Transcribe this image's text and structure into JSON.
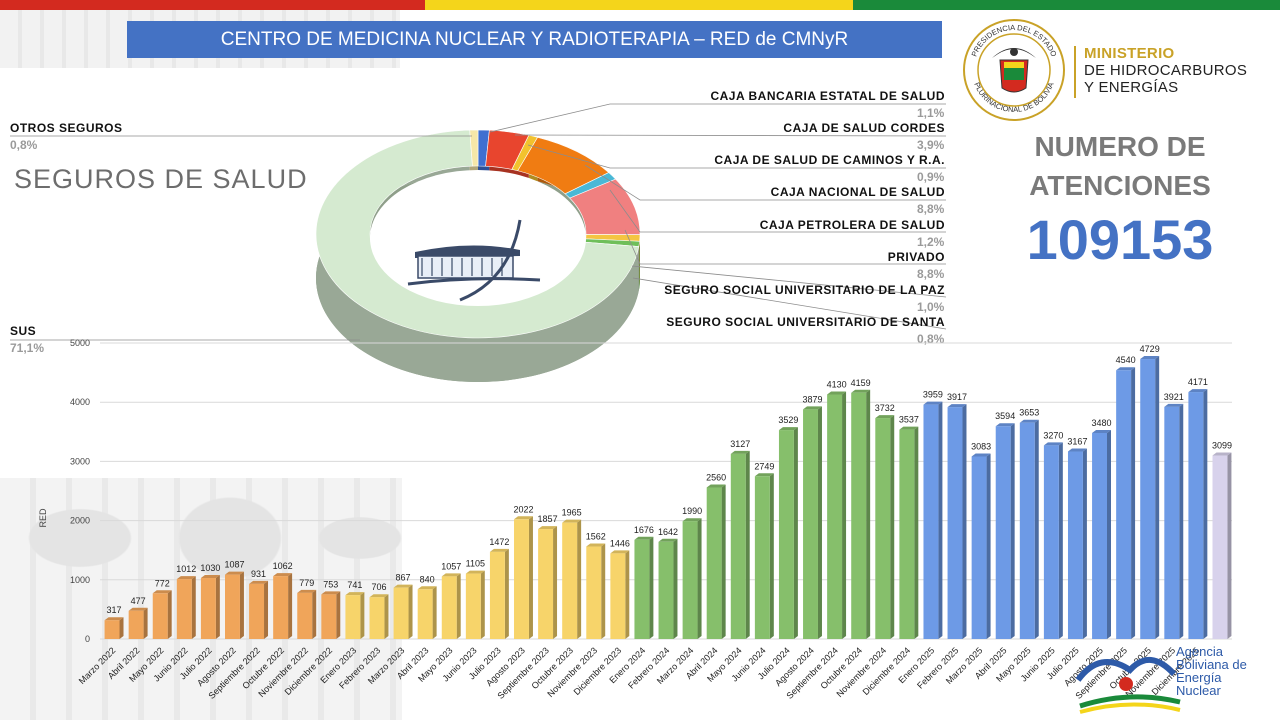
{
  "header": {
    "title": "CENTRO DE MEDICINA NUCLEAR Y RADIOTERAPIA – RED de CMNyR",
    "flag_colors": [
      "#d32a1f",
      "#f4d51b",
      "#1a8a3a"
    ]
  },
  "ministry": {
    "seal_top_text": "PRESIDENCIA DEL ESTADO",
    "seal_bottom_text": "PLURINACIONAL DE BOLIVIA",
    "line1": "MINISTERIO",
    "line2": "DE HIDROCARBUROS",
    "line3": "Y ENERGÍAS"
  },
  "summary": {
    "label_line1": "NUMERO DE",
    "label_line2": "ATENCIONES",
    "value": "109153"
  },
  "agency": {
    "line1": "Agencia",
    "line2": "Boliviana de",
    "line3": "Energía",
    "line4": "Nuclear"
  },
  "chart_data": [
    {
      "type": "pie",
      "style": "donut-3d",
      "title": "SEGUROS DE SALUD",
      "slices": [
        {
          "label": "CAJA BANCARIA ESTATAL DE SALUD",
          "pct_text": "1,1%",
          "value": 1.1,
          "color": "#3f6fd0"
        },
        {
          "label": "CAJA DE SALUD CORDES",
          "pct_text": "3,9%",
          "value": 3.9,
          "color": "#e8452e"
        },
        {
          "label": "CAJA DE SALUD DE CAMINOS Y R.A.",
          "pct_text": "0,9%",
          "value": 0.9,
          "color": "#f2c22e"
        },
        {
          "label": "CAJA NACIONAL DE SALUD",
          "pct_text": "8,8%",
          "value": 8.8,
          "color": "#f07c12"
        },
        {
          "label": "CAJA PETROLERA DE SALUD",
          "pct_text": "1,2%",
          "value": 1.2,
          "color": "#4ab8d6"
        },
        {
          "label": "PRIVADO",
          "pct_text": "8,8%",
          "value": 8.8,
          "color": "#f08080"
        },
        {
          "label": "SEGURO SOCIAL UNIVERSITARIO DE LA PAZ",
          "pct_text": "1,0%",
          "value": 1.0,
          "color": "#f4c542"
        },
        {
          "label": "SEGURO SOCIAL UNIVERSITARIO DE SANTA",
          "pct_text": "0,8%",
          "value": 0.8,
          "color": "#6fbf5a"
        },
        {
          "label": "SUS",
          "pct_text": "71,1%",
          "value": 71.1,
          "color": "#d5ead0"
        },
        {
          "label": "OTROS SEGUROS",
          "pct_text": "0,8%",
          "value": 0.8,
          "color": "#f6e7a8"
        }
      ]
    },
    {
      "type": "bar",
      "ylabel": "RED",
      "ylim": [
        0,
        5000
      ],
      "yticks": [
        0,
        1000,
        2000,
        3000,
        4000,
        5000
      ],
      "grid": true,
      "categories": [
        "Marzo 2022",
        "Abril 2022",
        "Mayo 2022",
        "Junio 2022",
        "Julio 2022",
        "Agosto 2022",
        "Septiembre 2022",
        "Octubre 2022",
        "Noviembre 2022",
        "Diciembre 2022",
        "Enero 2023",
        "Febrero 2023",
        "Marzo 2023",
        "Abril 2023",
        "Mayo 2023",
        "Junio 2023",
        "Julio 2023",
        "Agosto 2023",
        "Septiembre 2023",
        "Octubre 2023",
        "Noviembre 2023",
        "Diciembre 2023",
        "Enero 2024",
        "Febrero 2024",
        "Marzo 2024",
        "Abril 2024",
        "Mayo 2024",
        "Junio 2024",
        "Julio 2024",
        "Agosto 2024",
        "Septiembre 2024",
        "Octubre 2024",
        "Noviembre 2024",
        "Diciembre 2024",
        "Enero 2025",
        "Febrero 2025",
        "Marzo 2025",
        "Abril 2025",
        "Mayo 2025",
        "Junio 2025",
        "Julio 2025",
        "Agosto 2025",
        "Septiembre 2025",
        "Octubre 2025",
        "Noviembre 2025",
        "Diciembre 2025",
        ""
      ],
      "values": [
        317,
        477,
        772,
        1012,
        1030,
        1087,
        931,
        1062,
        779,
        753,
        741,
        706,
        867,
        840,
        1057,
        1105,
        1472,
        2022,
        1857,
        1965,
        1562,
        1446,
        1676,
        1642,
        1990,
        2560,
        3127,
        2749,
        3529,
        3879,
        4130,
        4159,
        3732,
        3537,
        3959,
        3917,
        3083,
        3594,
        3653,
        3270,
        3167,
        3480,
        4540,
        4729,
        3921,
        4171,
        3099
      ],
      "colors": [
        "#f0a55a",
        "#f0a55a",
        "#f0a55a",
        "#f0a55a",
        "#f0a55a",
        "#f0a55a",
        "#f0a55a",
        "#f0a55a",
        "#f0a55a",
        "#f0a55a",
        "#f7d46a",
        "#f7d46a",
        "#f7d46a",
        "#f7d46a",
        "#f7d46a",
        "#f7d46a",
        "#f7d46a",
        "#f7d46a",
        "#f7d46a",
        "#f7d46a",
        "#f7d46a",
        "#f7d46a",
        "#86bf6b",
        "#86bf6b",
        "#86bf6b",
        "#86bf6b",
        "#86bf6b",
        "#86bf6b",
        "#86bf6b",
        "#86bf6b",
        "#86bf6b",
        "#86bf6b",
        "#86bf6b",
        "#86bf6b",
        "#6d9ae6",
        "#6d9ae6",
        "#6d9ae6",
        "#6d9ae6",
        "#6d9ae6",
        "#6d9ae6",
        "#6d9ae6",
        "#6d9ae6",
        "#6d9ae6",
        "#6d9ae6",
        "#6d9ae6",
        "#6d9ae6",
        "#d8d2ec"
      ]
    }
  ]
}
